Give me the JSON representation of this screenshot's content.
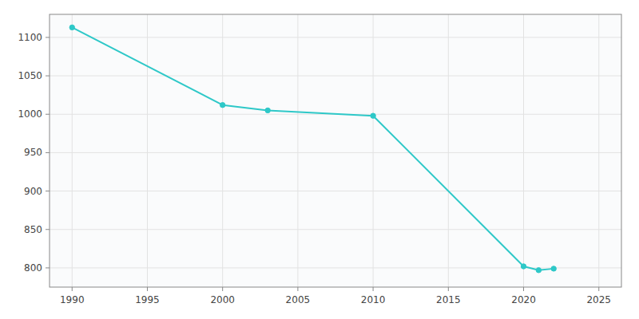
{
  "chart_data": {
    "type": "line",
    "x": [
      1990,
      2000,
      2003,
      2010,
      2020,
      2021,
      2022
    ],
    "values": [
      1113,
      1012,
      1005,
      998,
      802,
      797,
      799
    ],
    "color": "#2EC8C8",
    "marker": "circle",
    "xlim": [
      1988.5,
      2026.5
    ],
    "ylim": [
      775,
      1130
    ],
    "xticks": [
      1990,
      1995,
      2000,
      2005,
      2010,
      2015,
      2020,
      2025
    ],
    "yticks": [
      800,
      850,
      900,
      950,
      1000,
      1050,
      1100
    ],
    "grid": true
  }
}
